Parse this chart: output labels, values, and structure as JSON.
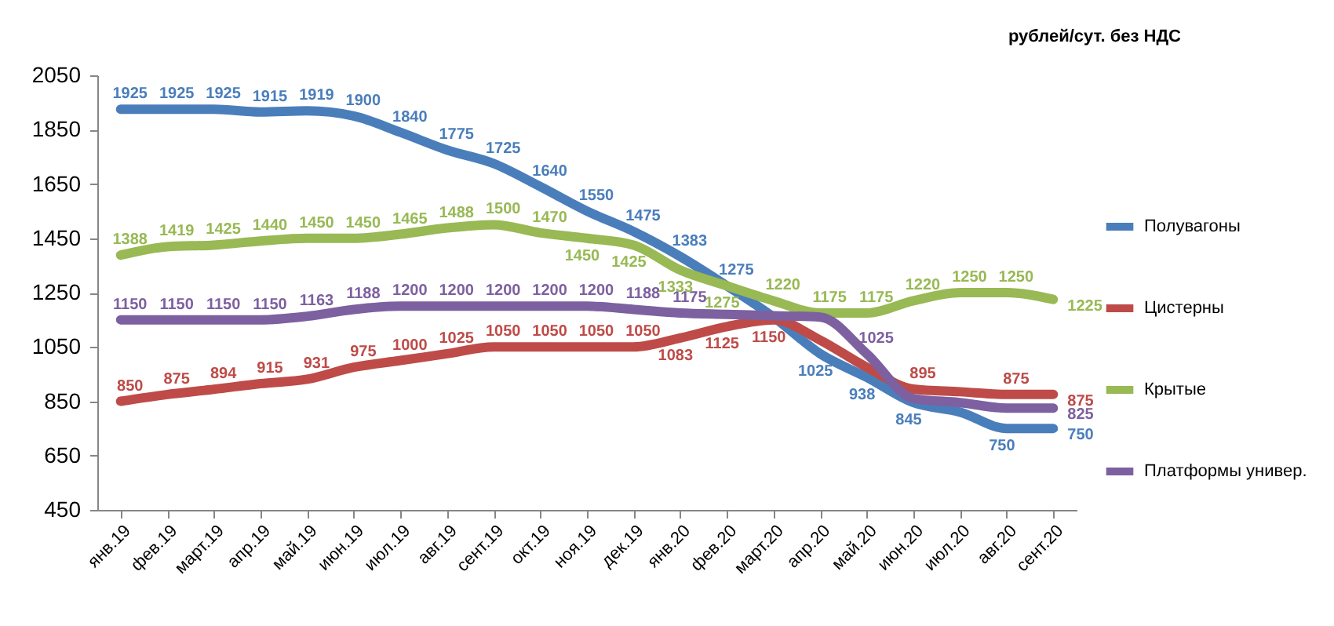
{
  "chart_data": {
    "type": "line",
    "ylabel": "рублей/сут. без НДС",
    "categories": [
      "янв.19",
      "фев.19",
      "март.19",
      "апр.19",
      "май.19",
      "июн.19",
      "июл.19",
      "авг.19",
      "сент.19",
      "окт.19",
      "ноя.19",
      "дек.19",
      "янв.20",
      "фев.20",
      "март.20",
      "апр.20",
      "май.20",
      "июн.20",
      "июл.20",
      "авг.20",
      "сент.20"
    ],
    "series": [
      {
        "name": "Полувагоны",
        "color": "#4a7ebb",
        "values": [
          1925,
          1925,
          1925,
          1915,
          1919,
          1900,
          1840,
          1775,
          1725,
          1640,
          1550,
          1475,
          1383,
          1275,
          1160,
          1025,
          938,
          845,
          810,
          750,
          750
        ],
        "value_labels": [
          "1925",
          "1925",
          "1925",
          "1915",
          "1919",
          "1900",
          "1840",
          "1775",
          "1725",
          "1640",
          "1550",
          "1475",
          "1383",
          "1275",
          null,
          "1025",
          "938",
          "845",
          null,
          "750",
          "750"
        ]
      },
      {
        "name": "Цистерны",
        "color": "#be4b48",
        "values": [
          850,
          875,
          894,
          915,
          931,
          975,
          1000,
          1025,
          1050,
          1050,
          1050,
          1050,
          1083,
          1125,
          1150,
          1075,
          975,
          895,
          885,
          875,
          875
        ],
        "value_labels": [
          "850",
          "875",
          "894",
          "915",
          "931",
          "975",
          "1000",
          "1025",
          "1050",
          "1050",
          "1050",
          "1050",
          "1083",
          "1125",
          "1150",
          null,
          null,
          "895",
          null,
          "875",
          "875"
        ]
      },
      {
        "name": "Крытые",
        "color": "#98b954",
        "values": [
          1388,
          1419,
          1425,
          1440,
          1450,
          1450,
          1465,
          1488,
          1500,
          1470,
          1450,
          1425,
          1333,
          1275,
          1220,
          1175,
          1175,
          1220,
          1250,
          1250,
          1225
        ],
        "value_labels": [
          "1388",
          "1419",
          "1425",
          "1440",
          "1450",
          "1450",
          "1465",
          "1488",
          "1500",
          "1470",
          "1450",
          "1425",
          "1333",
          "1275",
          "1220",
          "1175",
          "1175",
          "1220",
          "1250",
          "1250",
          "1225"
        ]
      },
      {
        "name": "Платформы универ.",
        "color": "#7d60a0",
        "values": [
          1150,
          1150,
          1150,
          1150,
          1163,
          1188,
          1200,
          1200,
          1200,
          1200,
          1200,
          1188,
          1175,
          1170,
          1165,
          1160,
          1025,
          860,
          845,
          825,
          825
        ],
        "value_labels": [
          "1150",
          "1150",
          "1150",
          "1150",
          "1163",
          "1188",
          "1200",
          "1200",
          "1200",
          "1200",
          "1200",
          "1188",
          "1175",
          null,
          null,
          null,
          "1025",
          null,
          null,
          null,
          "825"
        ]
      }
    ],
    "ylim": [
      450,
      2050
    ],
    "yticks": [
      450,
      650,
      850,
      1050,
      1250,
      1450,
      1650,
      1850,
      2050
    ],
    "legend": "right",
    "grid": false
  }
}
